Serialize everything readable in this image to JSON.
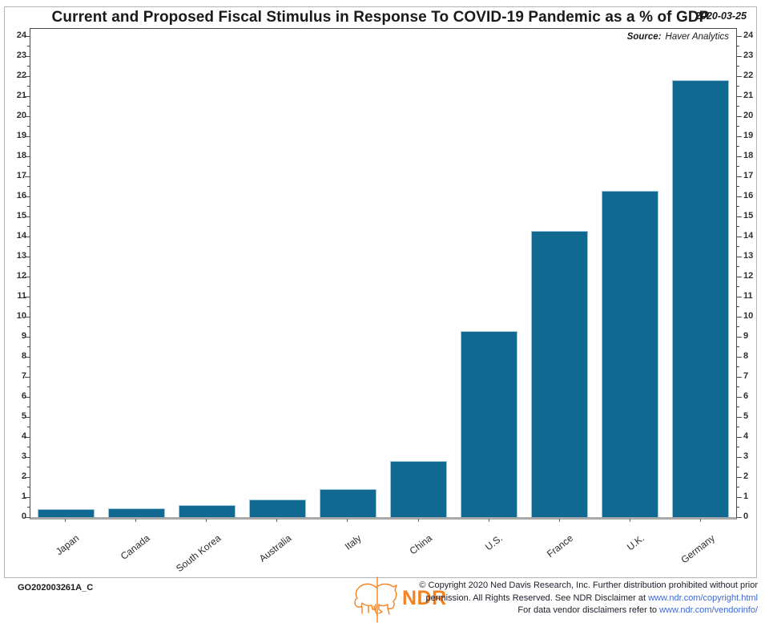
{
  "header": {
    "title": "Current and Proposed Fiscal Stimulus in Response To COVID-19 Pandemic as a % of GDP",
    "date": "2020-03-25"
  },
  "source": {
    "label": "Source:",
    "value": "Haver Analytics"
  },
  "chart_data": {
    "type": "bar",
    "title": "Current and Proposed Fiscal Stimulus in Response To COVID-19 Pandemic as a % of GDP",
    "categories": [
      "Japan",
      "Canada",
      "South Korea",
      "Australia",
      "Italy",
      "China",
      "U.S.",
      "France",
      "U.K.",
      "Germany"
    ],
    "values": [
      0.4,
      0.45,
      0.6,
      0.9,
      1.4,
      2.8,
      9.3,
      14.3,
      16.3,
      21.8
    ],
    "xlabel": "",
    "ylabel": "% of GDP",
    "ylim": [
      0,
      24
    ],
    "ytick_step": 1,
    "yminor_step": 0.5,
    "grid": false,
    "legend": "none",
    "bar_color": "#116891",
    "bar_edge_color": "#9cc7da"
  },
  "footer": {
    "chart_id": "GO202003261A_C",
    "logo_text": "NDR",
    "logo_color": "#f58220",
    "copyright": {
      "line1": "© Copyright 2020 Ned Davis Research, Inc. Further distribution prohibited without prior",
      "line2_text": "permission. All Rights Reserved. See NDR Disclaimer at ",
      "line2_link": "www.ndr.com/copyright.html",
      "line3_text": "For data vendor disclaimers refer to ",
      "line3_link": "www.ndr.com/vendorinfo/"
    }
  }
}
